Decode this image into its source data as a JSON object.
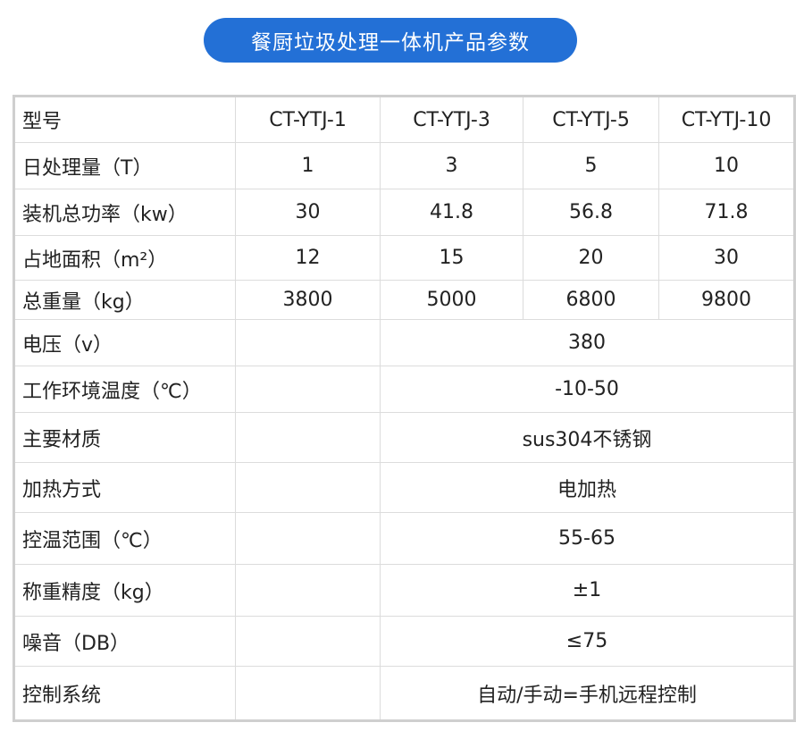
{
  "title": "餐厨垃圾处理一体机产品参数",
  "header": {
    "label": "型号",
    "models": [
      "CT-YTJ-1",
      "CT-YTJ-3",
      "CT-YTJ-5",
      "CT-YTJ-10"
    ]
  },
  "rows_per_model": [
    {
      "label": "日处理量（T）",
      "values": [
        "1",
        "3",
        "5",
        "10"
      ]
    },
    {
      "label": "装机总功率（kw）",
      "values": [
        "30",
        "41.8",
        "56.8",
        "71.8"
      ]
    },
    {
      "label": "占地面积（m²）",
      "values": [
        "12",
        "15",
        "20",
        "30"
      ]
    },
    {
      "label": "总重量（kg）",
      "values": [
        "3800",
        "5000",
        "6800",
        "9800"
      ]
    }
  ],
  "rows_shared": [
    {
      "label": "电压（v）",
      "value": "380"
    },
    {
      "label": "工作环境温度（℃）",
      "value": "-10-50"
    },
    {
      "label": "主要材质",
      "value": "sus304不锈钢"
    },
    {
      "label": "加热方式",
      "value": "电加热"
    },
    {
      "label": "控温范围（℃）",
      "value": "55-65"
    },
    {
      "label": "称重精度（kg）",
      "value": "±1"
    },
    {
      "label": "噪音（DB）",
      "value": "≤75"
    },
    {
      "label": "控制系统",
      "value": "自动/手动=手机远程控制"
    }
  ],
  "colors": {
    "accent": "#2370d6",
    "border": "#cfcfcf"
  }
}
